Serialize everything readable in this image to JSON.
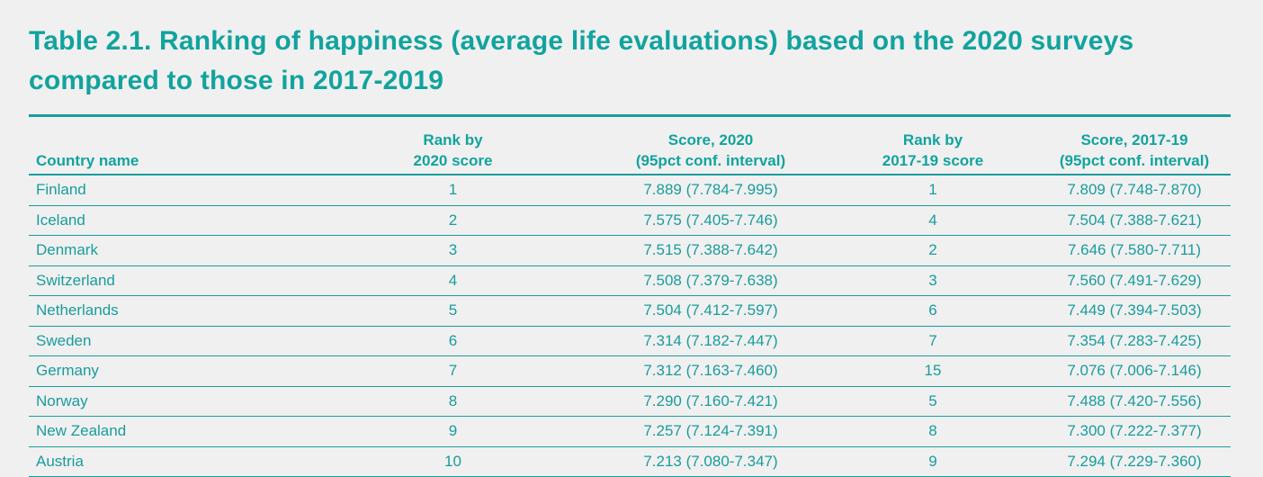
{
  "title": "Table 2.1. Ranking of happiness (average life evaluations) based on the 2020 surveys compared to those in 2017-2019",
  "table": {
    "headers": {
      "country": "Country name",
      "rank2020": [
        "Rank by",
        "2020 score"
      ],
      "score2020": [
        "Score, 2020",
        "(95pct conf. interval)"
      ],
      "rank201719": [
        "Rank by",
        "2017-19 score"
      ],
      "score201719": [
        "Score, 2017-19",
        "(95pct conf. interval)"
      ]
    },
    "rows": [
      {
        "country": "Finland",
        "rank2020": "1",
        "score2020": "7.889 (7.784-7.995)",
        "rank201719": "1",
        "score201719": "7.809 (7.748-7.870)"
      },
      {
        "country": "Iceland",
        "rank2020": "2",
        "score2020": "7.575 (7.405-7.746)",
        "rank201719": "4",
        "score201719": "7.504 (7.388-7.621)"
      },
      {
        "country": "Denmark",
        "rank2020": "3",
        "score2020": "7.515 (7.388-7.642)",
        "rank201719": "2",
        "score201719": "7.646 (7.580-7.711)"
      },
      {
        "country": "Switzerland",
        "rank2020": "4",
        "score2020": "7.508 (7.379-7.638)",
        "rank201719": "3",
        "score201719": "7.560 (7.491-7.629)"
      },
      {
        "country": "Netherlands",
        "rank2020": "5",
        "score2020": "7.504 (7.412-7.597)",
        "rank201719": "6",
        "score201719": "7.449 (7.394-7.503)"
      },
      {
        "country": "Sweden",
        "rank2020": "6",
        "score2020": "7.314 (7.182-7.447)",
        "rank201719": "7",
        "score201719": "7.354 (7.283-7.425)"
      },
      {
        "country": "Germany",
        "rank2020": "7",
        "score2020": "7.312 (7.163-7.460)",
        "rank201719": "15",
        "score201719": "7.076 (7.006-7.146)"
      },
      {
        "country": "Norway",
        "rank2020": "8",
        "score2020": "7.290 (7.160-7.421)",
        "rank201719": "5",
        "score201719": "7.488 (7.420-7.556)"
      },
      {
        "country": "New Zealand",
        "rank2020": "9",
        "score2020": "7.257 (7.124-7.391)",
        "rank201719": "8",
        "score201719": "7.300 (7.222-7.377)"
      },
      {
        "country": "Austria",
        "rank2020": "10",
        "score2020": "7.213 (7.080-7.347)",
        "rank201719": "9",
        "score201719": "7.294 (7.229-7.360)"
      }
    ]
  },
  "colors": {
    "accent": "#12a39e",
    "background": "#f0f0f0"
  }
}
